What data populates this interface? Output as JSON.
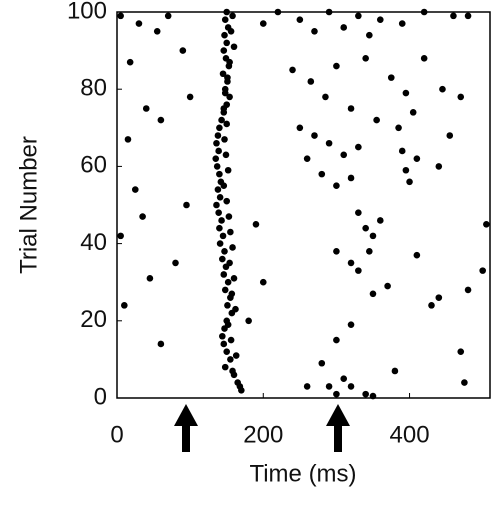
{
  "chart_data": {
    "type": "scatter",
    "xlabel": "Time (ms)",
    "ylabel": "Trial Number",
    "color": "#000000",
    "xlim": [
      0,
      510
    ],
    "ylim": [
      0,
      100
    ],
    "xticks": [
      0,
      200,
      400
    ],
    "yticks": [
      0,
      20,
      40,
      60,
      80,
      100
    ],
    "x": [
      150,
      148,
      152,
      147,
      150,
      146,
      149,
      153,
      145,
      151,
      148,
      154,
      150,
      146,
      143,
      140,
      138,
      136,
      139,
      135,
      137,
      140,
      142,
      138,
      141,
      136,
      139,
      143,
      140,
      145,
      141,
      147,
      144,
      149,
      146,
      152,
      148,
      155,
      151,
      157,
      150,
      147,
      144,
      146,
      150,
      155,
      148,
      160,
      165,
      170,
      158,
      156,
      160,
      154,
      151,
      148,
      146,
      150,
      147,
      149,
      152,
      146,
      150,
      153,
      155,
      158,
      154,
      160,
      157,
      162,
      152,
      156,
      163,
      158,
      168,
      5,
      18,
      30,
      55,
      70,
      90,
      100,
      40,
      15,
      60,
      25,
      35,
      5,
      45,
      10,
      60,
      80,
      95,
      200,
      220,
      250,
      270,
      290,
      310,
      330,
      345,
      360,
      390,
      420,
      460,
      480,
      240,
      265,
      285,
      300,
      320,
      340,
      355,
      375,
      395,
      405,
      420,
      445,
      470,
      250,
      270,
      290,
      310,
      330,
      260,
      280,
      300,
      320,
      385,
      390,
      395,
      400,
      410,
      440,
      455,
      330,
      340,
      350,
      360,
      345,
      300,
      320,
      330,
      350,
      370,
      410,
      440,
      430,
      480,
      500,
      300,
      280,
      320,
      260,
      290,
      300,
      310,
      320,
      340,
      350,
      380,
      470,
      475,
      505,
      200,
      190,
      180
    ],
    "values": [
      100,
      98,
      96,
      94,
      92,
      90,
      88,
      86,
      84,
      82,
      80,
      78,
      76,
      74,
      72,
      70,
      68,
      66,
      64,
      62,
      60,
      58,
      56,
      54,
      52,
      50,
      48,
      46,
      44,
      42,
      40,
      38,
      36,
      34,
      32,
      30,
      28,
      26,
      24,
      22,
      20,
      18,
      16,
      14,
      12,
      10,
      8,
      6,
      4,
      2,
      99,
      95,
      91,
      87,
      83,
      79,
      75,
      71,
      67,
      63,
      59,
      55,
      51,
      47,
      43,
      39,
      35,
      31,
      27,
      23,
      19,
      15,
      11,
      7,
      3,
      99,
      87,
      97,
      95,
      99,
      90,
      78,
      75,
      67,
      72,
      54,
      47,
      42,
      31,
      24,
      14,
      35,
      50,
      97,
      100,
      98,
      95,
      100,
      96,
      99,
      94,
      98,
      97,
      100,
      99,
      99,
      85,
      82,
      78,
      86,
      75,
      88,
      72,
      83,
      79,
      74,
      88,
      80,
      78,
      70,
      68,
      66,
      63,
      65,
      62,
      58,
      55,
      57,
      70,
      64,
      59,
      56,
      62,
      60,
      68,
      48,
      44,
      42,
      46,
      38,
      38,
      35,
      33,
      27,
      29,
      37,
      26,
      24,
      28,
      33,
      15,
      9,
      19,
      3,
      3,
      1,
      5,
      3,
      1,
      0.5,
      7,
      12,
      4,
      45,
      30,
      45,
      20
    ]
  }
}
